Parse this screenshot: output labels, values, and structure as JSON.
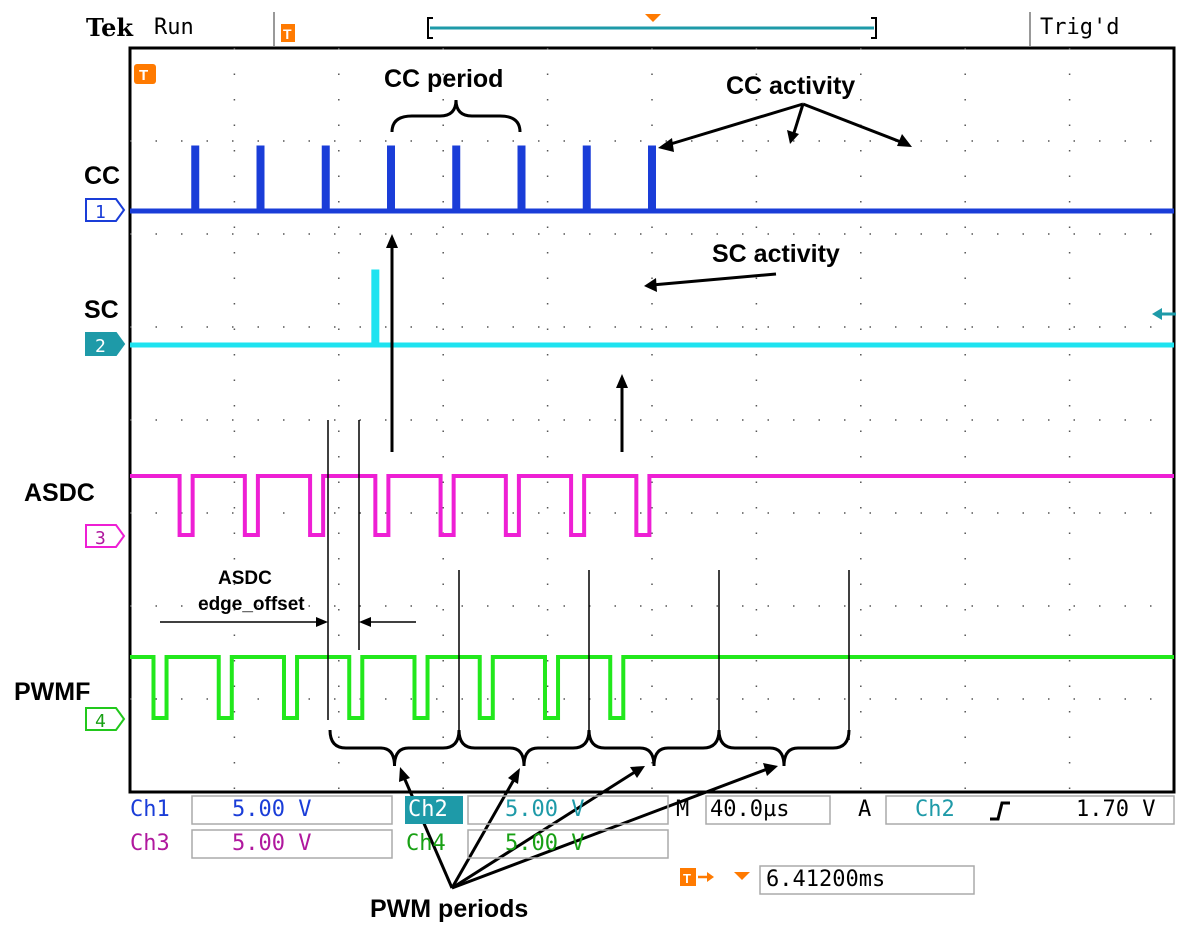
{
  "header": {
    "brand": "Tek",
    "state": "Run",
    "trigger_status": "Trig'd"
  },
  "channels": [
    {
      "id": "1",
      "label": "CC",
      "color": "#1a3dd8",
      "volts": "5.00 V",
      "readout": "Ch1"
    },
    {
      "id": "2",
      "label": "SC",
      "color": "#1ee3f0",
      "volts": "5.00 V",
      "readout": "Ch2"
    },
    {
      "id": "3",
      "label": "ASDC",
      "color": "#ee1fd4",
      "volts": "5.00 V",
      "readout": "Ch3"
    },
    {
      "id": "4",
      "label": "PWMF",
      "color": "#22e81c",
      "volts": "5.00 V",
      "readout": "Ch4"
    }
  ],
  "timebase": {
    "prefix": "M",
    "value": "40.0µs"
  },
  "trigger": {
    "prefix": "A",
    "source": "Ch2",
    "level": "1.70 V"
  },
  "trigger_position": {
    "value": "6.41200ms"
  },
  "annotations": {
    "cc_period": "CC period",
    "cc_activity": "CC activity",
    "sc_activity": "SC activity",
    "asdc_offset_line1": "ASDC",
    "asdc_offset_line2": "edge_offset",
    "pwm_periods": "PWM periods"
  },
  "colors": {
    "grid_dots": "#555555",
    "frame": "#000000",
    "trigger_marker": "#ff7a00",
    "ch2_label_bg": "#1e9aa8"
  },
  "chart_data": {
    "type": "line",
    "title": "",
    "x_unit": "µs",
    "x_range": [
      0,
      400
    ],
    "y_unit": "V",
    "divisions": {
      "horizontal": 10,
      "vertical": 8
    },
    "series": [
      {
        "name": "CC",
        "kind": "pulse",
        "pulse_times": [
          25,
          50,
          75,
          100,
          125,
          150,
          175,
          200
        ]
      },
      {
        "name": "SC",
        "kind": "pulse",
        "pulse_times": [
          94
        ]
      },
      {
        "name": "ASDC",
        "kind": "square_low",
        "low_intervals": [
          [
            19,
            24
          ],
          [
            44,
            49
          ],
          [
            69,
            74
          ],
          [
            94,
            99
          ],
          [
            119,
            124
          ],
          [
            144,
            149
          ],
          [
            169,
            174
          ],
          [
            194,
            199
          ]
        ]
      },
      {
        "name": "PWMF",
        "kind": "square_low",
        "low_intervals": [
          [
            9,
            14
          ],
          [
            34,
            39
          ],
          [
            59,
            64
          ],
          [
            84,
            89
          ],
          [
            109,
            114
          ],
          [
            134,
            139
          ],
          [
            159,
            164
          ],
          [
            184,
            189
          ]
        ]
      }
    ]
  }
}
